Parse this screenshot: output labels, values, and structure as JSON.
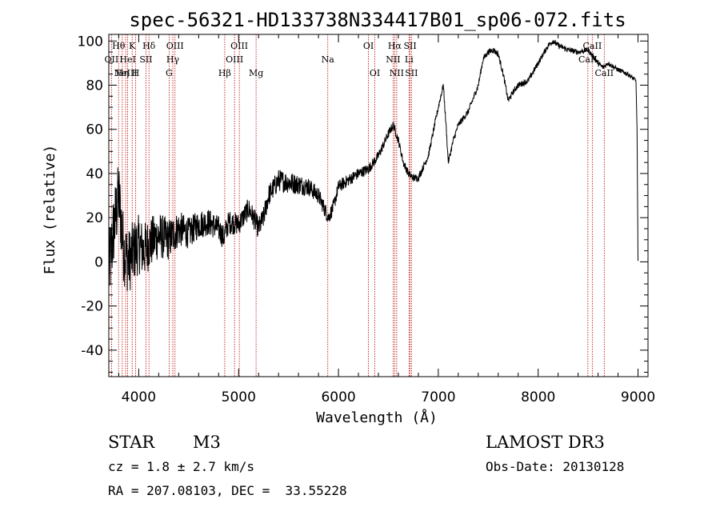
{
  "chart_data": {
    "type": "line",
    "title": "spec-56321-HD133738N334417B01_sp06-072.fits",
    "xlabel": "Wavelength (Å)",
    "ylabel": "Flux (relative)",
    "xlim": [
      3700,
      9100
    ],
    "ylim": [
      -52,
      103
    ],
    "xticks": [
      4000,
      5000,
      6000,
      7000,
      8000,
      9000
    ],
    "yticks": [
      -40,
      -20,
      0,
      20,
      40,
      60,
      80,
      100
    ],
    "series": [
      {
        "name": "flux",
        "anchors": [
          [
            3700,
            -5
          ],
          [
            3750,
            15
          ],
          [
            3800,
            30
          ],
          [
            3850,
            5
          ],
          [
            3900,
            0
          ],
          [
            3950,
            5
          ],
          [
            4000,
            8
          ],
          [
            4050,
            5
          ],
          [
            4100,
            8
          ],
          [
            4200,
            12
          ],
          [
            4300,
            10
          ],
          [
            4400,
            15
          ],
          [
            4500,
            13
          ],
          [
            4600,
            17
          ],
          [
            4700,
            18
          ],
          [
            4800,
            15
          ],
          [
            4850,
            11
          ],
          [
            4900,
            18
          ],
          [
            5000,
            17
          ],
          [
            5100,
            24
          ],
          [
            5150,
            20
          ],
          [
            5200,
            15
          ],
          [
            5250,
            20
          ],
          [
            5300,
            30
          ],
          [
            5400,
            37
          ],
          [
            5500,
            36
          ],
          [
            5600,
            35
          ],
          [
            5700,
            34
          ],
          [
            5800,
            30
          ],
          [
            5900,
            20
          ],
          [
            5950,
            25
          ],
          [
            6000,
            34
          ],
          [
            6100,
            37
          ],
          [
            6200,
            40
          ],
          [
            6300,
            42
          ],
          [
            6400,
            48
          ],
          [
            6500,
            58
          ],
          [
            6550,
            62
          ],
          [
            6600,
            55
          ],
          [
            6650,
            45
          ],
          [
            6700,
            40
          ],
          [
            6750,
            38
          ],
          [
            6800,
            38
          ],
          [
            6900,
            48
          ],
          [
            7000,
            70
          ],
          [
            7050,
            80
          ],
          [
            7080,
            60
          ],
          [
            7100,
            45
          ],
          [
            7150,
            55
          ],
          [
            7200,
            62
          ],
          [
            7300,
            68
          ],
          [
            7400,
            80
          ],
          [
            7450,
            92
          ],
          [
            7500,
            95
          ],
          [
            7550,
            96
          ],
          [
            7600,
            94
          ],
          [
            7650,
            85
          ],
          [
            7700,
            73
          ],
          [
            7750,
            77
          ],
          [
            7800,
            80
          ],
          [
            7900,
            82
          ],
          [
            8000,
            90
          ],
          [
            8100,
            98
          ],
          [
            8150,
            100
          ],
          [
            8200,
            98
          ],
          [
            8300,
            96
          ],
          [
            8400,
            95
          ],
          [
            8500,
            96
          ],
          [
            8600,
            90
          ],
          [
            8650,
            88
          ],
          [
            8700,
            90
          ],
          [
            8800,
            87
          ],
          [
            8900,
            85
          ],
          [
            8980,
            82
          ],
          [
            8990,
            60
          ],
          [
            9000,
            0
          ]
        ],
        "noise_profile": [
          [
            3700,
            18
          ],
          [
            4100,
            12
          ],
          [
            4500,
            7
          ],
          [
            5000,
            5
          ],
          [
            5500,
            5
          ],
          [
            6000,
            3
          ],
          [
            6500,
            2
          ],
          [
            7000,
            1.5
          ],
          [
            8000,
            1.3
          ],
          [
            9000,
            1
          ]
        ]
      }
    ],
    "spectral_lines": [
      {
        "wavelength": 3727,
        "label": "OII",
        "row": 2
      },
      {
        "wavelength": 3798,
        "label": "Hθ",
        "row": 1
      },
      {
        "wavelength": 3835,
        "label": "Hη",
        "row": 3
      },
      {
        "wavelength": 3869,
        "label": "NeIII",
        "row": 3
      },
      {
        "wavelength": 3889,
        "label": "HeI",
        "row": 2
      },
      {
        "wavelength": 3934,
        "label": "K",
        "row": 1
      },
      {
        "wavelength": 3969,
        "label": "H",
        "row": 3
      },
      {
        "wavelength": 4072,
        "label": "SII",
        "row": 2
      },
      {
        "wavelength": 4102,
        "label": "Hδ",
        "row": 1
      },
      {
        "wavelength": 4304,
        "label": "G",
        "row": 3
      },
      {
        "wavelength": 4341,
        "label": "Hγ",
        "row": 2
      },
      {
        "wavelength": 4363,
        "label": "OIII",
        "row": 1
      },
      {
        "wavelength": 4861,
        "label": "Hβ",
        "row": 3
      },
      {
        "wavelength": 4959,
        "label": "OIII",
        "row": 2
      },
      {
        "wavelength": 5007,
        "label": "OIII",
        "row": 1
      },
      {
        "wavelength": 5175,
        "label": "Mg",
        "row": 3
      },
      {
        "wavelength": 5893,
        "label": "Na",
        "row": 2
      },
      {
        "wavelength": 6300,
        "label": "OI",
        "row": 1
      },
      {
        "wavelength": 6364,
        "label": "OI",
        "row": 3
      },
      {
        "wavelength": 6548,
        "label": "NII",
        "row": 2
      },
      {
        "wavelength": 6563,
        "label": "Hα",
        "row": 1
      },
      {
        "wavelength": 6583,
        "label": "NII",
        "row": 3
      },
      {
        "wavelength": 6707,
        "label": "Li",
        "row": 2
      },
      {
        "wavelength": 6717,
        "label": "SII",
        "row": 1
      },
      {
        "wavelength": 6731,
        "label": "SII",
        "row": 3
      },
      {
        "wavelength": 8498,
        "label": "CaII",
        "row": 2
      },
      {
        "wavelength": 8542,
        "label": "CaII",
        "row": 1
      },
      {
        "wavelength": 8662,
        "label": "CaII",
        "row": 3
      }
    ],
    "line_color": "#bb0000"
  },
  "info": {
    "object_class": "STAR",
    "subclass": "M3",
    "survey": "LAMOST DR3",
    "cz": "cz = 1.8 ± 2.7 km/s",
    "obs_date": "Obs-Date: 20130128",
    "coords": "RA = 207.08103, DEC =  33.55228"
  }
}
